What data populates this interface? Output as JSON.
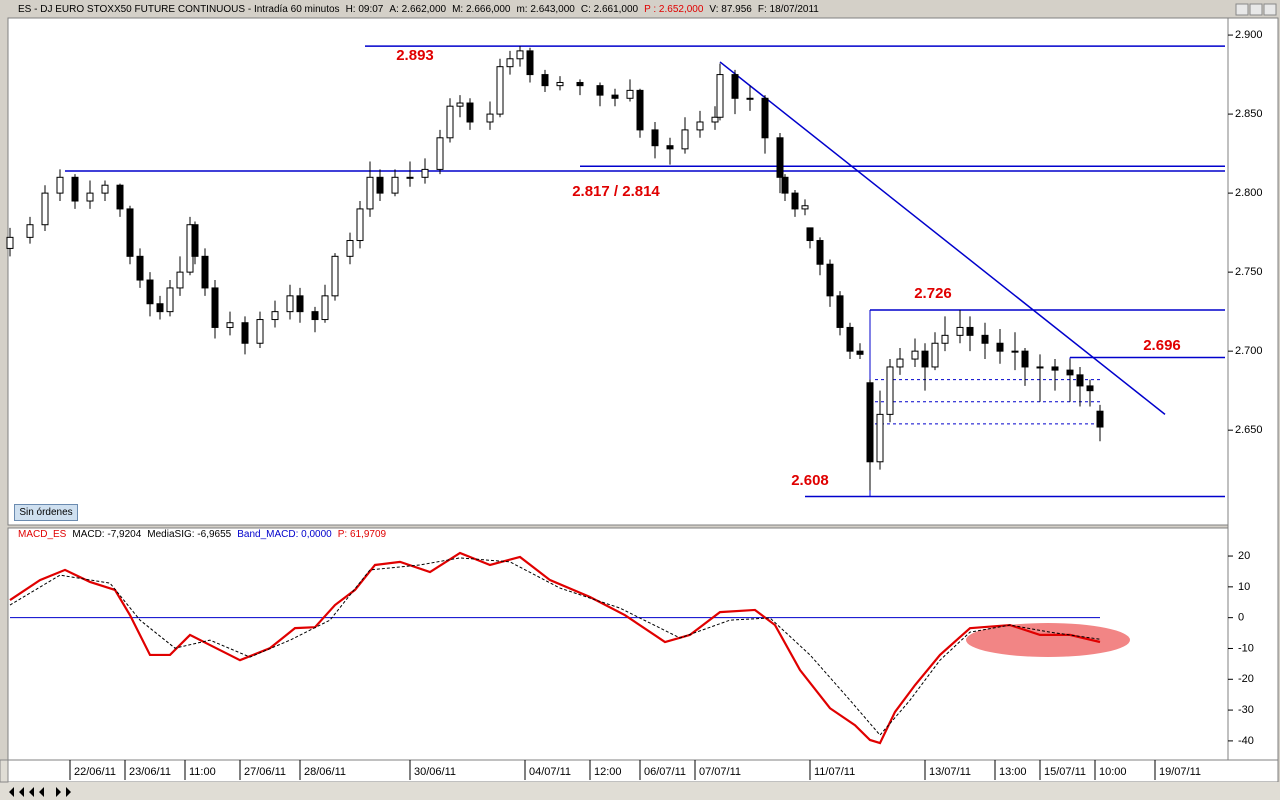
{
  "chart_data": [
    {
      "type": "candlestick",
      "header": [
        "ES - DJ EURO STOXX50 FUTURE CONTINUOUS - Intradía 60 minutos",
        "H: 09:07",
        "A: 2.662,000",
        "M: 2.666,000",
        "m: 2.643,000",
        "C: 2.661,000",
        "P : 2.652,000",
        "V: 87.956",
        "F: 18/07/2011"
      ],
      "button": "Sin órdenes",
      "xlim": [
        0,
        243
      ],
      "ylim": [
        2.59,
        2.9108
      ],
      "yticks": [
        {
          "value": 2.65,
          "label": "2.650"
        },
        {
          "value": 2.7,
          "label": "2.700"
        },
        {
          "value": 2.75,
          "label": "2.750"
        },
        {
          "value": 2.8,
          "label": "2.800"
        },
        {
          "value": 2.85,
          "label": "2.850"
        },
        {
          "value": 2.9,
          "label": "2.900"
        }
      ],
      "x": [
        0,
        4,
        7,
        10,
        13,
        16,
        19,
        22,
        24,
        26,
        28,
        30,
        32,
        34,
        36,
        37,
        39,
        41,
        44,
        47,
        50,
        53,
        56,
        58,
        61,
        63,
        65,
        68,
        70,
        72,
        74,
        77,
        80,
        83,
        86,
        88,
        90,
        92,
        96,
        98,
        100,
        102,
        104,
        107,
        110,
        114,
        118,
        121,
        124,
        126,
        129,
        132,
        135,
        138,
        141,
        142,
        145,
        148,
        151,
        154,
        155,
        157,
        159,
        160,
        162,
        164,
        166,
        168,
        170,
        172,
        174,
        176,
        178,
        181,
        183,
        185,
        187,
        190,
        192,
        195,
        198,
        201,
        203,
        206,
        209,
        212,
        214,
        216,
        218
      ],
      "values": [
        [
          2.765,
          2.778,
          2.76,
          2.772
        ],
        [
          2.772,
          2.785,
          2.768,
          2.78
        ],
        [
          2.78,
          2.805,
          2.776,
          2.8
        ],
        [
          2.8,
          2.815,
          2.795,
          2.81
        ],
        [
          2.81,
          2.812,
          2.79,
          2.795
        ],
        [
          2.795,
          2.808,
          2.79,
          2.8
        ],
        [
          2.8,
          2.808,
          2.795,
          2.805
        ],
        [
          2.805,
          2.806,
          2.785,
          2.79
        ],
        [
          2.79,
          2.792,
          2.755,
          2.76
        ],
        [
          2.76,
          2.765,
          2.74,
          2.745
        ],
        [
          2.745,
          2.75,
          2.722,
          2.73
        ],
        [
          2.73,
          2.735,
          2.72,
          2.725
        ],
        [
          2.725,
          2.745,
          2.722,
          2.74
        ],
        [
          2.74,
          2.76,
          2.735,
          2.75
        ],
        [
          2.75,
          2.785,
          2.748,
          2.78
        ],
        [
          2.78,
          2.782,
          2.755,
          2.76
        ],
        [
          2.76,
          2.765,
          2.735,
          2.74
        ],
        [
          2.74,
          2.745,
          2.708,
          2.715
        ],
        [
          2.715,
          2.725,
          2.71,
          2.718
        ],
        [
          2.718,
          2.722,
          2.698,
          2.705
        ],
        [
          2.705,
          2.725,
          2.702,
          2.72
        ],
        [
          2.72,
          2.732,
          2.715,
          2.725
        ],
        [
          2.725,
          2.742,
          2.72,
          2.735
        ],
        [
          2.735,
          2.74,
          2.718,
          2.725
        ],
        [
          2.725,
          2.728,
          2.712,
          2.72
        ],
        [
          2.72,
          2.742,
          2.718,
          2.735
        ],
        [
          2.735,
          2.762,
          2.732,
          2.76
        ],
        [
          2.76,
          2.775,
          2.755,
          2.77
        ],
        [
          2.77,
          2.795,
          2.765,
          2.79
        ],
        [
          2.79,
          2.82,
          2.785,
          2.81
        ],
        [
          2.81,
          2.815,
          2.795,
          2.8
        ],
        [
          2.8,
          2.815,
          2.798,
          2.81
        ],
        [
          2.81,
          2.82,
          2.804,
          2.81
        ],
        [
          2.81,
          2.822,
          2.806,
          2.815
        ],
        [
          2.815,
          2.84,
          2.812,
          2.835
        ],
        [
          2.835,
          2.86,
          2.832,
          2.855
        ],
        [
          2.855,
          2.862,
          2.848,
          2.857
        ],
        [
          2.857,
          2.86,
          2.84,
          2.845
        ],
        [
          2.845,
          2.858,
          2.84,
          2.85
        ],
        [
          2.85,
          2.885,
          2.848,
          2.88
        ],
        [
          2.88,
          2.89,
          2.875,
          2.885
        ],
        [
          2.885,
          2.893,
          2.88,
          2.89
        ],
        [
          2.89,
          2.892,
          2.87,
          2.875
        ],
        [
          2.875,
          2.878,
          2.864,
          2.868
        ],
        [
          2.868,
          2.874,
          2.865,
          2.87
        ],
        [
          2.87,
          2.872,
          2.862,
          2.868
        ],
        [
          2.868,
          2.87,
          2.855,
          2.862
        ],
        [
          2.862,
          2.866,
          2.855,
          2.86
        ],
        [
          2.86,
          2.872,
          2.858,
          2.865
        ],
        [
          2.865,
          2.866,
          2.835,
          2.84
        ],
        [
          2.84,
          2.845,
          2.822,
          2.83
        ],
        [
          2.83,
          2.835,
          2.818,
          2.828
        ],
        [
          2.828,
          2.848,
          2.825,
          2.84
        ],
        [
          2.84,
          2.852,
          2.835,
          2.845
        ],
        [
          2.845,
          2.855,
          2.84,
          2.848
        ],
        [
          2.848,
          2.882,
          2.846,
          2.875
        ],
        [
          2.875,
          2.878,
          2.85,
          2.86
        ],
        [
          2.86,
          2.868,
          2.852,
          2.86
        ],
        [
          2.86,
          2.862,
          2.825,
          2.835
        ],
        [
          2.835,
          2.838,
          2.8,
          2.81
        ],
        [
          2.81,
          2.812,
          2.795,
          2.8
        ],
        [
          2.8,
          2.802,
          2.785,
          2.79
        ],
        [
          2.79,
          2.796,
          2.786,
          2.792
        ],
        [
          2.778,
          2.778,
          2.765,
          2.77
        ],
        [
          2.77,
          2.772,
          2.748,
          2.755
        ],
        [
          2.755,
          2.758,
          2.728,
          2.735
        ],
        [
          2.735,
          2.738,
          2.71,
          2.715
        ],
        [
          2.715,
          2.718,
          2.695,
          2.7
        ],
        [
          2.7,
          2.705,
          2.695,
          2.698
        ],
        [
          2.68,
          2.682,
          2.612,
          2.63
        ],
        [
          2.63,
          2.675,
          2.625,
          2.66
        ],
        [
          2.66,
          2.695,
          2.655,
          2.69
        ],
        [
          2.69,
          2.702,
          2.685,
          2.695
        ],
        [
          2.695,
          2.708,
          2.69,
          2.7
        ],
        [
          2.7,
          2.705,
          2.675,
          2.69
        ],
        [
          2.69,
          2.712,
          2.688,
          2.705
        ],
        [
          2.705,
          2.722,
          2.7,
          2.71
        ],
        [
          2.71,
          2.726,
          2.705,
          2.715
        ],
        [
          2.715,
          2.722,
          2.7,
          2.71
        ],
        [
          2.71,
          2.718,
          2.695,
          2.705
        ],
        [
          2.705,
          2.714,
          2.692,
          2.7
        ],
        [
          2.7,
          2.712,
          2.688,
          2.7
        ],
        [
          2.7,
          2.702,
          2.678,
          2.69
        ],
        [
          2.69,
          2.698,
          2.668,
          2.69
        ],
        [
          2.69,
          2.695,
          2.675,
          2.688
        ],
        [
          2.688,
          2.695,
          2.668,
          2.685
        ],
        [
          2.685,
          2.69,
          2.665,
          2.678
        ],
        [
          2.678,
          2.682,
          2.665,
          2.675
        ],
        [
          2.662,
          2.666,
          2.643,
          2.652
        ]
      ],
      "hlines": [
        {
          "y": 2.893,
          "x": [
            71,
            243
          ]
        },
        {
          "y": 2.817,
          "x": [
            114,
            243
          ]
        },
        {
          "y": 2.814,
          "x": [
            11,
            243
          ]
        },
        {
          "y": 2.726,
          "x": [
            172,
            243
          ]
        },
        {
          "y": 2.696,
          "x": [
            212,
            243
          ]
        },
        {
          "y": 2.608,
          "x": [
            159,
            243
          ]
        }
      ],
      "vlines": [
        {
          "x": 172,
          "y": [
            2.608,
            2.726
          ]
        },
        {
          "x": 212,
          "y": [
            2.685,
            2.696
          ]
        }
      ],
      "dashed_hlines": [
        {
          "y": 2.682,
          "x": [
            173,
            218
          ]
        },
        {
          "y": 2.668,
          "x": [
            173,
            218
          ]
        },
        {
          "y": 2.654,
          "x": [
            173,
            218
          ]
        }
      ],
      "trendline": {
        "x": [
          142,
          231
        ],
        "y": [
          2.883,
          2.66
        ]
      },
      "annotations": [
        "2.893",
        "2.817 / 2.814",
        "2.726",
        "2.696",
        "2.608"
      ]
    },
    {
      "type": "line",
      "header": [
        "MACD_ES",
        "MACD: -7,9204",
        "MediaSIG: -6,9655",
        "Band_MACD: 0,0000",
        "P: 61,9709"
      ],
      "xlim": [
        0,
        243
      ],
      "ylim": [
        -46.2,
        29.1
      ],
      "yticks": [
        20,
        10,
        0,
        -10,
        -20,
        -30,
        -40
      ],
      "xticks": [
        {
          "value": 12,
          "label": "22/06/11"
        },
        {
          "value": 23,
          "label": "23/06/11"
        },
        {
          "value": 35,
          "label": "11:00"
        },
        {
          "value": 46,
          "label": "27/06/11"
        },
        {
          "value": 58,
          "label": "28/06/11"
        },
        {
          "value": 80,
          "label": "30/06/11"
        },
        {
          "value": 103,
          "label": "04/07/11"
        },
        {
          "value": 116,
          "label": "12:00"
        },
        {
          "value": 126,
          "label": "06/07/11"
        },
        {
          "value": 137,
          "label": "07/07/11"
        },
        {
          "value": 160,
          "label": "11/07/11"
        },
        {
          "value": 183,
          "label": "13/07/11"
        },
        {
          "value": 197,
          "label": "13:00"
        },
        {
          "value": 206,
          "label": "15/07/11"
        },
        {
          "value": 217,
          "label": "10:00"
        },
        {
          "value": 229,
          "label": "19/07/11"
        }
      ],
      "band": {
        "y": 0,
        "x": [
          0,
          218
        ]
      },
      "series": [
        {
          "color": "#e00000",
          "x": [
            0,
            6,
            11,
            16,
            21,
            24,
            28,
            32,
            36,
            40,
            46,
            52,
            57,
            61,
            65,
            69,
            73,
            78,
            84,
            90,
            96,
            102,
            108,
            116,
            123,
            131,
            136,
            142,
            149,
            153,
            158,
            164,
            169,
            172,
            174,
            177,
            181,
            186,
            192,
            200,
            206,
            212,
            218
          ],
          "values": [
            5.7,
            12.2,
            15.5,
            11.6,
            9,
            0.8,
            -12.1,
            -12.1,
            -5.6,
            -8.9,
            -13.8,
            -9.9,
            -3.4,
            -3.1,
            4.1,
            9,
            17.1,
            18.1,
            14.8,
            21,
            17.1,
            19.7,
            12.2,
            6.7,
            0.8,
            -7.9,
            -5.6,
            1.8,
            2.5,
            -2.4,
            -17,
            -29.4,
            -34.9,
            -39.7,
            -40.7,
            -30.6,
            -21.9,
            -12.1,
            -3.4,
            -2.4,
            -5.6,
            -5.6,
            -7.9
          ]
        },
        {
          "color": "#000000",
          "dashed": true,
          "x": [
            0,
            10,
            20,
            26,
            33,
            40,
            48,
            56,
            64,
            72,
            82,
            90,
            100,
            110,
            122,
            134,
            144,
            152,
            160,
            168,
            174,
            180,
            186,
            192,
            200,
            208,
            218
          ],
          "values": [
            4.1,
            13.8,
            11.2,
            -0.8,
            -9.9,
            -7.3,
            -12.8,
            -7.3,
            -0.8,
            15.5,
            17.1,
            19.4,
            18.1,
            9.6,
            3.1,
            -6.6,
            -0.8,
            -0.1,
            -12.1,
            -26.8,
            -38.1,
            -26.8,
            -13.8,
            -4.7,
            -2.4,
            -4.7,
            -7
          ]
        }
      ]
    }
  ]
}
